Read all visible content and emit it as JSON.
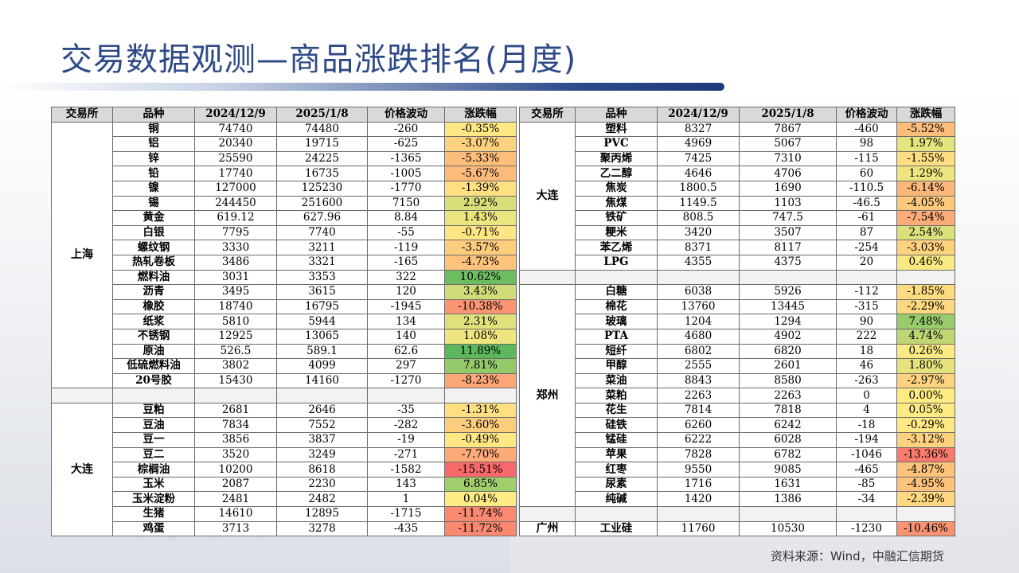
{
  "title": "交易数据观测—商品涨跌排名(月度)",
  "source": "资料来源：Wind，中融汇信期货",
  "headers": [
    "交易所",
    "品种",
    "2024/12/9",
    "2025/1/8",
    "价格波动",
    "涨跌幅"
  ],
  "colors": {
    "pos_strong": "#5cb85c",
    "neg_strong": "#f8696b",
    "neutral": "#ffeb84",
    "header_bg": "#d9d9d9",
    "title": "#2e4a86"
  },
  "left_groups": [
    {
      "exchange": "上海",
      "rows": [
        {
          "name": "铜",
          "v1": "74740",
          "v2": "74480",
          "diff": "-260",
          "pct": "-0.35%",
          "p": -0.35
        },
        {
          "name": "铝",
          "v1": "20340",
          "v2": "19715",
          "diff": "-625",
          "pct": "-3.07%",
          "p": -3.07
        },
        {
          "name": "锌",
          "v1": "25590",
          "v2": "24225",
          "diff": "-1365",
          "pct": "-5.33%",
          "p": -5.33
        },
        {
          "name": "铅",
          "v1": "17740",
          "v2": "16735",
          "diff": "-1005",
          "pct": "-5.67%",
          "p": -5.67
        },
        {
          "name": "镍",
          "v1": "127000",
          "v2": "125230",
          "diff": "-1770",
          "pct": "-1.39%",
          "p": -1.39
        },
        {
          "name": "锡",
          "v1": "244450",
          "v2": "251600",
          "diff": "7150",
          "pct": "2.92%",
          "p": 2.92
        },
        {
          "name": "黄金",
          "v1": "619.12",
          "v2": "627.96",
          "diff": "8.84",
          "pct": "1.43%",
          "p": 1.43
        },
        {
          "name": "白银",
          "v1": "7795",
          "v2": "7740",
          "diff": "-55",
          "pct": "-0.71%",
          "p": -0.71
        },
        {
          "name": "螺纹钢",
          "v1": "3330",
          "v2": "3211",
          "diff": "-119",
          "pct": "-3.57%",
          "p": -3.57
        },
        {
          "name": "热轧卷板",
          "v1": "3486",
          "v2": "3321",
          "diff": "-165",
          "pct": "-4.73%",
          "p": -4.73
        },
        {
          "name": "燃料油",
          "v1": "3031",
          "v2": "3353",
          "diff": "322",
          "pct": "10.62%",
          "p": 10.62
        },
        {
          "name": "沥青",
          "v1": "3495",
          "v2": "3615",
          "diff": "120",
          "pct": "3.43%",
          "p": 3.43
        },
        {
          "name": "橡胶",
          "v1": "18740",
          "v2": "16795",
          "diff": "-1945",
          "pct": "-10.38%",
          "p": -10.38
        },
        {
          "name": "纸浆",
          "v1": "5810",
          "v2": "5944",
          "diff": "134",
          "pct": "2.31%",
          "p": 2.31
        },
        {
          "name": "不锈钢",
          "v1": "12925",
          "v2": "13065",
          "diff": "140",
          "pct": "1.08%",
          "p": 1.08
        },
        {
          "name": "原油",
          "v1": "526.5",
          "v2": "589.1",
          "diff": "62.6",
          "pct": "11.89%",
          "p": 11.89
        },
        {
          "name": "低硫燃料油",
          "v1": "3802",
          "v2": "4099",
          "diff": "297",
          "pct": "7.81%",
          "p": 7.81
        },
        {
          "name": "20号胶",
          "v1": "15430",
          "v2": "14160",
          "diff": "-1270",
          "pct": "-8.23%",
          "p": -8.23
        }
      ]
    },
    {
      "exchange": "大连",
      "rows": [
        {
          "name": "豆粕",
          "v1": "2681",
          "v2": "2646",
          "diff": "-35",
          "pct": "-1.31%",
          "p": -1.31
        },
        {
          "name": "豆油",
          "v1": "7834",
          "v2": "7552",
          "diff": "-282",
          "pct": "-3.60%",
          "p": -3.6
        },
        {
          "name": "豆一",
          "v1": "3856",
          "v2": "3837",
          "diff": "-19",
          "pct": "-0.49%",
          "p": -0.49
        },
        {
          "name": "豆二",
          "v1": "3520",
          "v2": "3249",
          "diff": "-271",
          "pct": "-7.70%",
          "p": -7.7
        },
        {
          "name": "棕榈油",
          "v1": "10200",
          "v2": "8618",
          "diff": "-1582",
          "pct": "-15.51%",
          "p": -15.51
        },
        {
          "name": "玉米",
          "v1": "2087",
          "v2": "2230",
          "diff": "143",
          "pct": "6.85%",
          "p": 6.85
        },
        {
          "name": "玉米淀粉",
          "v1": "2481",
          "v2": "2482",
          "diff": "1",
          "pct": "0.04%",
          "p": 0.04
        },
        {
          "name": "生猪",
          "v1": "14610",
          "v2": "12895",
          "diff": "-1715",
          "pct": "-11.74%",
          "p": -11.74
        },
        {
          "name": "鸡蛋",
          "v1": "3713",
          "v2": "3278",
          "diff": "-435",
          "pct": "-11.72%",
          "p": -11.72
        }
      ]
    }
  ],
  "right_groups": [
    {
      "exchange": "大连",
      "rows": [
        {
          "name": "塑料",
          "v1": "8327",
          "v2": "7867",
          "diff": "-460",
          "pct": "-5.52%",
          "p": -5.52
        },
        {
          "name": "PVC",
          "v1": "4969",
          "v2": "5067",
          "diff": "98",
          "pct": "1.97%",
          "p": 1.97
        },
        {
          "name": "聚丙烯",
          "v1": "7425",
          "v2": "7310",
          "diff": "-115",
          "pct": "-1.55%",
          "p": -1.55
        },
        {
          "name": "乙二醇",
          "v1": "4646",
          "v2": "4706",
          "diff": "60",
          "pct": "1.29%",
          "p": 1.29
        },
        {
          "name": "焦炭",
          "v1": "1800.5",
          "v2": "1690",
          "diff": "-110.5",
          "pct": "-6.14%",
          "p": -6.14
        },
        {
          "name": "焦煤",
          "v1": "1149.5",
          "v2": "1103",
          "diff": "-46.5",
          "pct": "-4.05%",
          "p": -4.05
        },
        {
          "name": "铁矿",
          "v1": "808.5",
          "v2": "747.5",
          "diff": "-61",
          "pct": "-7.54%",
          "p": -7.54
        },
        {
          "name": "粳米",
          "v1": "3420",
          "v2": "3507",
          "diff": "87",
          "pct": "2.54%",
          "p": 2.54
        },
        {
          "name": "苯乙烯",
          "v1": "8371",
          "v2": "8117",
          "diff": "-254",
          "pct": "-3.03%",
          "p": -3.03
        },
        {
          "name": "LPG",
          "v1": "4355",
          "v2": "4375",
          "diff": "20",
          "pct": "0.46%",
          "p": 0.46
        }
      ]
    },
    {
      "exchange": "郑州",
      "rows": [
        {
          "name": "白糖",
          "v1": "6038",
          "v2": "5926",
          "diff": "-112",
          "pct": "-1.85%",
          "p": -1.85
        },
        {
          "name": "棉花",
          "v1": "13760",
          "v2": "13445",
          "diff": "-315",
          "pct": "-2.29%",
          "p": -2.29
        },
        {
          "name": "玻璃",
          "v1": "1204",
          "v2": "1294",
          "diff": "90",
          "pct": "7.48%",
          "p": 7.48
        },
        {
          "name": "PTA",
          "v1": "4680",
          "v2": "4902",
          "diff": "222",
          "pct": "4.74%",
          "p": 4.74
        },
        {
          "name": "短纤",
          "v1": "6802",
          "v2": "6820",
          "diff": "18",
          "pct": "0.26%",
          "p": 0.26
        },
        {
          "name": "甲醇",
          "v1": "2555",
          "v2": "2601",
          "diff": "46",
          "pct": "1.80%",
          "p": 1.8
        },
        {
          "name": "菜油",
          "v1": "8843",
          "v2": "8580",
          "diff": "-263",
          "pct": "-2.97%",
          "p": -2.97
        },
        {
          "name": "菜粕",
          "v1": "2263",
          "v2": "2263",
          "diff": "0",
          "pct": "0.00%",
          "p": 0.0
        },
        {
          "name": "花生",
          "v1": "7814",
          "v2": "7818",
          "diff": "4",
          "pct": "0.05%",
          "p": 0.05
        },
        {
          "name": "硅铁",
          "v1": "6260",
          "v2": "6242",
          "diff": "-18",
          "pct": "-0.29%",
          "p": -0.29
        },
        {
          "name": "锰硅",
          "v1": "6222",
          "v2": "6028",
          "diff": "-194",
          "pct": "-3.12%",
          "p": -3.12
        },
        {
          "name": "苹果",
          "v1": "7828",
          "v2": "6782",
          "diff": "-1046",
          "pct": "-13.36%",
          "p": -13.36
        },
        {
          "name": "红枣",
          "v1": "9550",
          "v2": "9085",
          "diff": "-465",
          "pct": "-4.87%",
          "p": -4.87
        },
        {
          "name": "尿素",
          "v1": "1716",
          "v2": "1631",
          "diff": "-85",
          "pct": "-4.95%",
          "p": -4.95
        },
        {
          "name": "纯碱",
          "v1": "1420",
          "v2": "1386",
          "diff": "-34",
          "pct": "-2.39%",
          "p": -2.39
        }
      ]
    },
    {
      "exchange": "广州",
      "rows": [
        {
          "name": "工业硅",
          "v1": "11760",
          "v2": "10530",
          "diff": "-1230",
          "pct": "-10.46%",
          "p": -10.46
        }
      ]
    }
  ]
}
